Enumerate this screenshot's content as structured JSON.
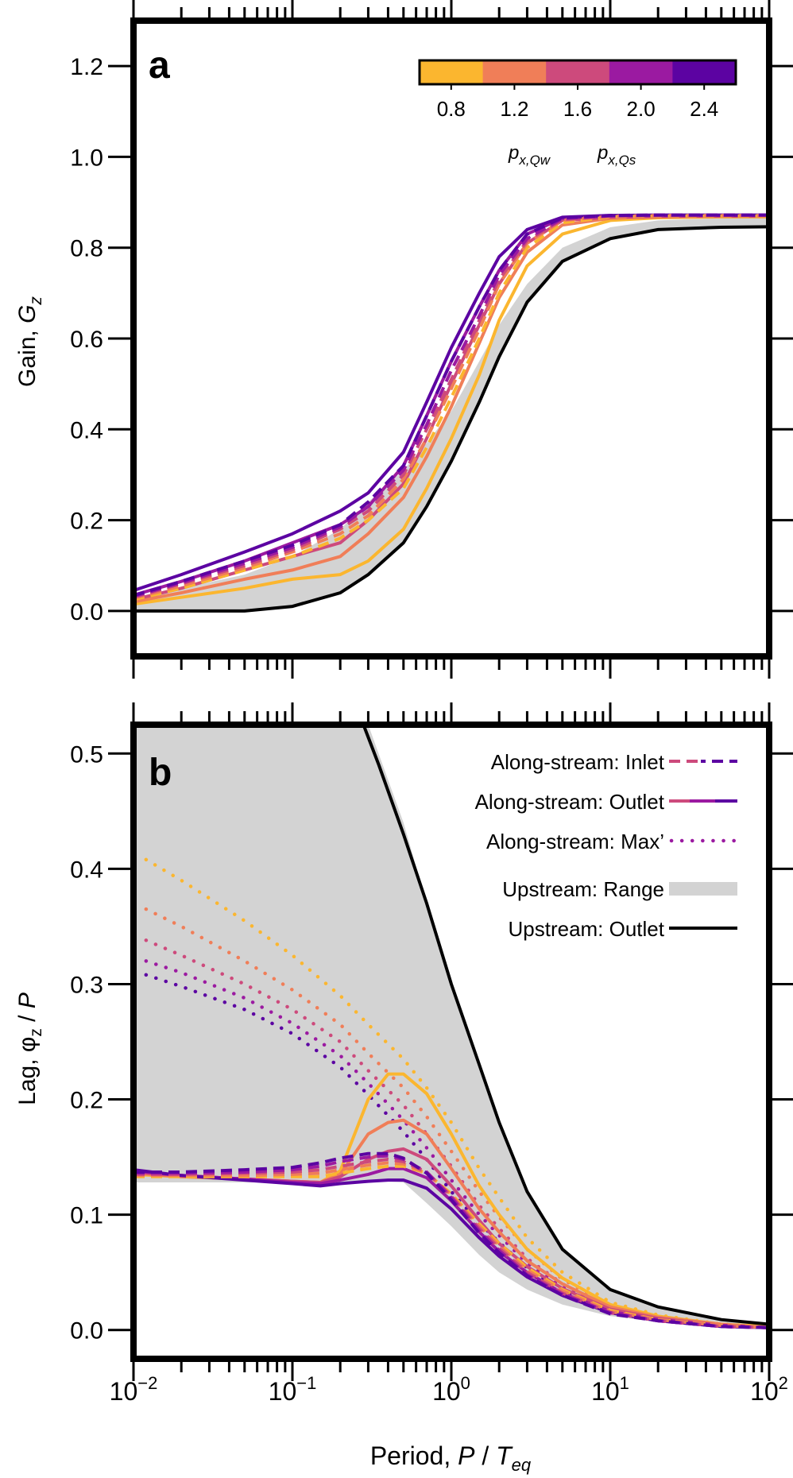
{
  "colors": {
    "axis": "#000000",
    "upstream_range": "#d3d3d3",
    "upstream_outlet": "#000000"
  },
  "colorbar": {
    "ticks": [
      "0.8",
      "1.2",
      "1.6",
      "2.0",
      "2.4"
    ],
    "colors": [
      "#fbb62f",
      "#f07e58",
      "#cd4a7c",
      "#9b1aa1",
      "#5c03a2"
    ],
    "label_qw": "p",
    "label_qw_sub": "x,Qw",
    "label_qs": "p",
    "label_qs_sub": "x,Qs"
  },
  "legend": {
    "inlet": "Along-stream: Inlet",
    "outlet": "Along-stream: Outlet",
    "max": "Along-stream: Max’",
    "range": "Upstream: Range",
    "up_outlet": "Upstream: Outlet"
  },
  "xaxis": {
    "label_main": "Period, ",
    "label_P": "P",
    "label_slash": " / ",
    "label_T": "T",
    "label_T_sub": "eq",
    "ticks": [
      {
        "base": "10",
        "exp": "−2"
      },
      {
        "base": "10",
        "exp": "−1"
      },
      {
        "base": "10",
        "exp": "0"
      },
      {
        "base": "10",
        "exp": "1"
      },
      {
        "base": "10",
        "exp": "2"
      }
    ]
  },
  "chart_data": [
    {
      "type": "line",
      "panel_label": "a",
      "ylabel_main": "Gain, ",
      "ylabel_G": "G",
      "ylabel_sub": "z",
      "x_scale": "log",
      "xlim": [
        0.01,
        100
      ],
      "ylim": [
        -0.1,
        1.3
      ],
      "yticks": [
        "0.0",
        "0.2",
        "0.4",
        "0.6",
        "0.8",
        "1.0",
        "1.2"
      ],
      "x": [
        0.01,
        0.02,
        0.05,
        0.1,
        0.2,
        0.3,
        0.5,
        0.7,
        1,
        1.5,
        2,
        3,
        5,
        10,
        20,
        50,
        100
      ],
      "upstream_range": {
        "upper": [
          0.03,
          0.05,
          0.08,
          0.12,
          0.18,
          0.24,
          0.31,
          0.37,
          0.44,
          0.55,
          0.63,
          0.72,
          0.8,
          0.845,
          0.86,
          0.865,
          0.866
        ],
        "lower": [
          0.0,
          0.0,
          0.0,
          0.01,
          0.04,
          0.08,
          0.15,
          0.23,
          0.33,
          0.46,
          0.56,
          0.68,
          0.77,
          0.82,
          0.84,
          0.845,
          0.846
        ]
      },
      "upstream_outlet": [
        0.0,
        0.0,
        0.0,
        0.01,
        0.04,
        0.08,
        0.15,
        0.23,
        0.33,
        0.46,
        0.56,
        0.68,
        0.77,
        0.82,
        0.84,
        0.845,
        0.846
      ],
      "series": [
        {
          "p": 0.8,
          "style": "solid",
          "values": [
            0.015,
            0.03,
            0.05,
            0.07,
            0.08,
            0.11,
            0.18,
            0.27,
            0.38,
            0.52,
            0.64,
            0.76,
            0.83,
            0.86,
            0.866,
            0.868,
            0.868
          ]
        },
        {
          "p": 1.2,
          "style": "solid",
          "values": [
            0.02,
            0.04,
            0.07,
            0.09,
            0.12,
            0.17,
            0.25,
            0.34,
            0.45,
            0.59,
            0.69,
            0.79,
            0.85,
            0.865,
            0.868,
            0.869,
            0.869
          ]
        },
        {
          "p": 1.6,
          "style": "solid",
          "values": [
            0.025,
            0.05,
            0.09,
            0.12,
            0.15,
            0.2,
            0.28,
            0.38,
            0.5,
            0.63,
            0.72,
            0.81,
            0.86,
            0.867,
            0.869,
            0.87,
            0.87
          ]
        },
        {
          "p": 2.0,
          "style": "solid",
          "values": [
            0.035,
            0.065,
            0.11,
            0.15,
            0.19,
            0.23,
            0.32,
            0.43,
            0.55,
            0.67,
            0.75,
            0.83,
            0.865,
            0.87,
            0.871,
            0.871,
            0.871
          ]
        },
        {
          "p": 2.4,
          "style": "solid",
          "values": [
            0.045,
            0.08,
            0.13,
            0.17,
            0.22,
            0.26,
            0.35,
            0.46,
            0.58,
            0.7,
            0.78,
            0.84,
            0.867,
            0.871,
            0.872,
            0.872,
            0.872
          ]
        },
        {
          "p": 0.8,
          "style": "dashed",
          "values": [
            0.025,
            0.05,
            0.09,
            0.12,
            0.16,
            0.2,
            0.27,
            0.36,
            0.47,
            0.6,
            0.7,
            0.8,
            0.855,
            0.868,
            0.87,
            0.87,
            0.87
          ]
        },
        {
          "p": 1.2,
          "style": "dashed",
          "values": [
            0.028,
            0.055,
            0.095,
            0.13,
            0.17,
            0.21,
            0.29,
            0.38,
            0.49,
            0.62,
            0.72,
            0.81,
            0.86,
            0.869,
            0.871,
            0.871,
            0.871
          ]
        },
        {
          "p": 1.6,
          "style": "dashed",
          "values": [
            0.03,
            0.06,
            0.1,
            0.135,
            0.18,
            0.22,
            0.3,
            0.4,
            0.51,
            0.64,
            0.73,
            0.815,
            0.862,
            0.87,
            0.871,
            0.871,
            0.871
          ]
        },
        {
          "p": 2.0,
          "style": "dashed",
          "values": [
            0.032,
            0.062,
            0.105,
            0.14,
            0.185,
            0.23,
            0.31,
            0.41,
            0.53,
            0.65,
            0.74,
            0.82,
            0.864,
            0.87,
            0.872,
            0.872,
            0.872
          ]
        },
        {
          "p": 2.4,
          "style": "dashed",
          "values": [
            0.034,
            0.065,
            0.11,
            0.145,
            0.19,
            0.24,
            0.32,
            0.43,
            0.55,
            0.67,
            0.75,
            0.83,
            0.866,
            0.871,
            0.872,
            0.872,
            0.872
          ]
        }
      ]
    },
    {
      "type": "line",
      "panel_label": "b",
      "ylabel_main": "Lag, ",
      "ylabel_phi": "φ",
      "ylabel_sub": "z",
      "ylabel_tail": " / ",
      "ylabel_P": "P",
      "x_scale": "log",
      "xlim": [
        0.01,
        100
      ],
      "ylim": [
        -0.025,
        0.525
      ],
      "yticks": [
        "0.0",
        "0.1",
        "0.2",
        "0.3",
        "0.4",
        "0.5"
      ],
      "x": [
        0.01,
        0.02,
        0.05,
        0.1,
        0.15,
        0.2,
        0.3,
        0.4,
        0.5,
        0.7,
        1,
        1.5,
        2,
        3,
        5,
        10,
        20,
        50,
        100
      ],
      "upstream_range": {
        "upper_x": [
          0.01,
          0.2,
          0.3,
          0.5,
          0.7,
          1,
          1.5,
          2,
          3,
          5,
          10,
          20,
          50,
          100
        ],
        "upper": [
          0.525,
          0.525,
          0.525,
          0.44,
          0.37,
          0.3,
          0.23,
          0.18,
          0.12,
          0.07,
          0.035,
          0.02,
          0.009,
          0.005
        ],
        "lower_x": [
          0.01,
          0.2,
          0.3,
          0.5,
          0.7,
          1,
          1.5,
          2,
          3,
          5,
          10,
          20,
          50,
          100
        ],
        "lower": [
          0.128,
          0.128,
          0.13,
          0.128,
          0.11,
          0.09,
          0.065,
          0.05,
          0.035,
          0.022,
          0.012,
          0.007,
          0.004,
          0.003
        ]
      },
      "upstream_outlet": {
        "x": [
          0.28,
          0.35,
          0.5,
          0.7,
          1,
          1.5,
          2,
          3,
          5,
          10,
          20,
          50,
          100
        ],
        "values": [
          0.525,
          0.49,
          0.43,
          0.37,
          0.3,
          0.23,
          0.18,
          0.12,
          0.07,
          0.035,
          0.02,
          0.009,
          0.005
        ]
      },
      "series": [
        {
          "p": 0.8,
          "style": "solid",
          "values": [
            0.135,
            0.133,
            0.131,
            0.129,
            0.128,
            0.138,
            0.2,
            0.222,
            0.222,
            0.205,
            0.17,
            0.125,
            0.1,
            0.07,
            0.045,
            0.022,
            0.012,
            0.005,
            0.003
          ]
        },
        {
          "p": 1.2,
          "style": "solid",
          "values": [
            0.136,
            0.133,
            0.131,
            0.129,
            0.128,
            0.135,
            0.17,
            0.18,
            0.182,
            0.17,
            0.14,
            0.105,
            0.085,
            0.06,
            0.04,
            0.02,
            0.011,
            0.005,
            0.002
          ]
        },
        {
          "p": 1.6,
          "style": "solid",
          "values": [
            0.137,
            0.134,
            0.131,
            0.129,
            0.128,
            0.133,
            0.148,
            0.155,
            0.157,
            0.148,
            0.125,
            0.095,
            0.075,
            0.055,
            0.036,
            0.018,
            0.01,
            0.004,
            0.002
          ]
        },
        {
          "p": 2.0,
          "style": "solid",
          "values": [
            0.138,
            0.134,
            0.131,
            0.128,
            0.127,
            0.13,
            0.135,
            0.14,
            0.14,
            0.132,
            0.112,
            0.085,
            0.068,
            0.05,
            0.032,
            0.016,
            0.009,
            0.004,
            0.002
          ]
        },
        {
          "p": 2.4,
          "style": "solid",
          "values": [
            0.139,
            0.134,
            0.13,
            0.127,
            0.125,
            0.127,
            0.129,
            0.13,
            0.13,
            0.123,
            0.105,
            0.08,
            0.064,
            0.046,
            0.03,
            0.015,
            0.008,
            0.003,
            0.002
          ]
        },
        {
          "p": 0.8,
          "style": "dashed",
          "values": [
            0.133,
            0.133,
            0.133,
            0.133,
            0.133,
            0.136,
            0.14,
            0.142,
            0.142,
            0.136,
            0.118,
            0.092,
            0.075,
            0.054,
            0.035,
            0.017,
            0.009,
            0.004,
            0.002
          ]
        },
        {
          "p": 1.2,
          "style": "dashed",
          "values": [
            0.134,
            0.134,
            0.134,
            0.135,
            0.136,
            0.139,
            0.143,
            0.145,
            0.144,
            0.136,
            0.117,
            0.09,
            0.073,
            0.052,
            0.034,
            0.016,
            0.009,
            0.004,
            0.002
          ]
        },
        {
          "p": 1.6,
          "style": "dashed",
          "values": [
            0.135,
            0.135,
            0.136,
            0.137,
            0.139,
            0.142,
            0.146,
            0.148,
            0.146,
            0.137,
            0.116,
            0.088,
            0.071,
            0.05,
            0.032,
            0.015,
            0.008,
            0.003,
            0.002
          ]
        },
        {
          "p": 2.0,
          "style": "dashed",
          "values": [
            0.136,
            0.136,
            0.137,
            0.139,
            0.142,
            0.146,
            0.15,
            0.151,
            0.148,
            0.137,
            0.115,
            0.086,
            0.069,
            0.048,
            0.031,
            0.015,
            0.008,
            0.003,
            0.002
          ]
        },
        {
          "p": 2.4,
          "style": "dashed",
          "values": [
            0.137,
            0.137,
            0.139,
            0.141,
            0.145,
            0.149,
            0.153,
            0.153,
            0.149,
            0.136,
            0.113,
            0.084,
            0.067,
            0.047,
            0.03,
            0.014,
            0.008,
            0.003,
            0.002
          ]
        }
      ],
      "max_series": [
        {
          "p": 0.8,
          "x": [
            0.012,
            0.02,
            0.05,
            0.1,
            0.2,
            0.3,
            0.5,
            0.7,
            1,
            1.5,
            2,
            3,
            5,
            10,
            20,
            50,
            100
          ],
          "values": [
            0.408,
            0.39,
            0.355,
            0.325,
            0.29,
            0.265,
            0.235,
            0.21,
            0.18,
            0.14,
            0.115,
            0.08,
            0.05,
            0.024,
            0.013,
            0.005,
            0.003
          ]
        },
        {
          "p": 1.2,
          "x": [
            0.012,
            0.02,
            0.05,
            0.1,
            0.2,
            0.3,
            0.5,
            0.7,
            1,
            1.5,
            2,
            3,
            5,
            10,
            20,
            50,
            100
          ],
          "values": [
            0.365,
            0.35,
            0.32,
            0.295,
            0.265,
            0.24,
            0.21,
            0.185,
            0.155,
            0.12,
            0.098,
            0.07,
            0.044,
            0.021,
            0.011,
            0.005,
            0.002
          ]
        },
        {
          "p": 1.6,
          "x": [
            0.012,
            0.02,
            0.05,
            0.1,
            0.2,
            0.3,
            0.5,
            0.7,
            1,
            1.5,
            2,
            3,
            5,
            10,
            20,
            50,
            100
          ],
          "values": [
            0.338,
            0.325,
            0.3,
            0.278,
            0.25,
            0.225,
            0.195,
            0.17,
            0.142,
            0.108,
            0.088,
            0.062,
            0.04,
            0.019,
            0.01,
            0.004,
            0.002
          ]
        },
        {
          "p": 2.0,
          "x": [
            0.012,
            0.02,
            0.05,
            0.1,
            0.2,
            0.3,
            0.5,
            0.7,
            1,
            1.5,
            2,
            3,
            5,
            10,
            20,
            50,
            100
          ],
          "values": [
            0.32,
            0.31,
            0.288,
            0.266,
            0.238,
            0.214,
            0.182,
            0.158,
            0.13,
            0.1,
            0.082,
            0.058,
            0.037,
            0.018,
            0.009,
            0.004,
            0.002
          ]
        },
        {
          "p": 2.4,
          "x": [
            0.012,
            0.02,
            0.05,
            0.1,
            0.2,
            0.3,
            0.5,
            0.7,
            1,
            1.5,
            2,
            3,
            5,
            10,
            20,
            50,
            100
          ],
          "values": [
            0.308,
            0.298,
            0.278,
            0.257,
            0.228,
            0.204,
            0.172,
            0.148,
            0.12,
            0.093,
            0.076,
            0.054,
            0.034,
            0.017,
            0.009,
            0.004,
            0.002
          ]
        }
      ]
    }
  ]
}
